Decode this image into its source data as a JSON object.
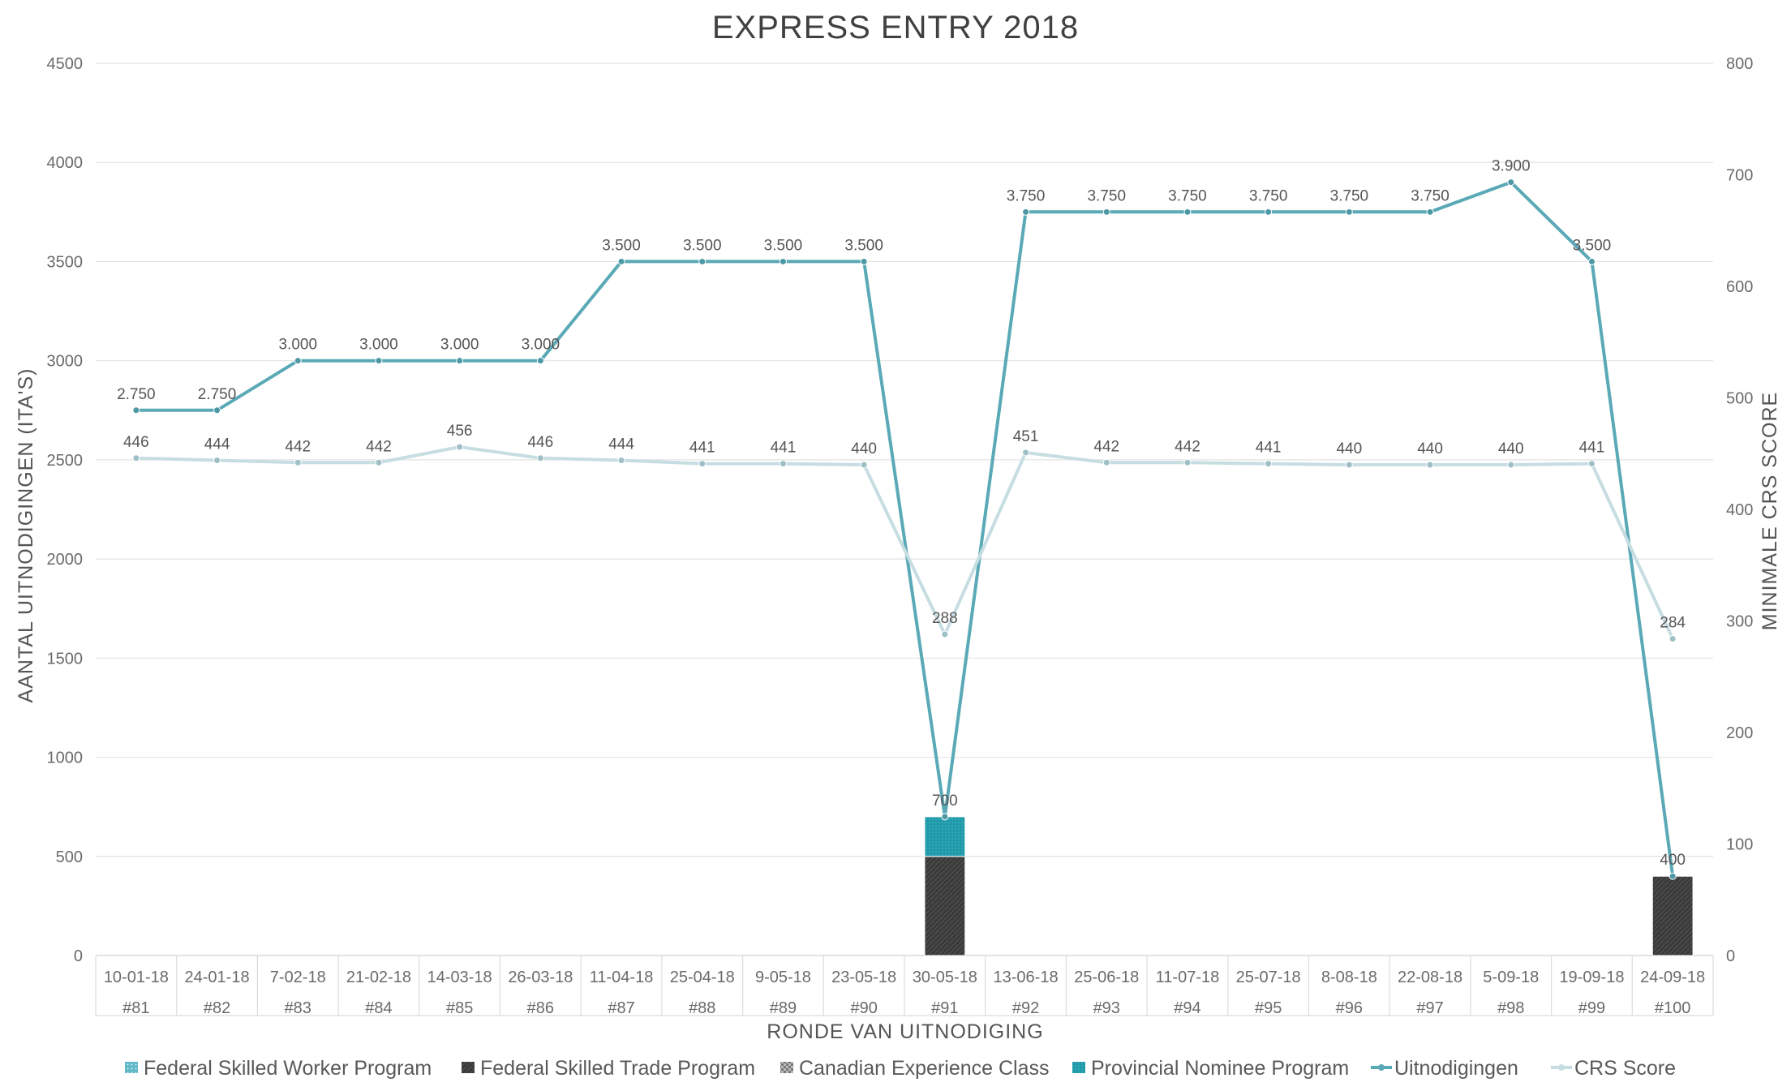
{
  "chart_data": {
    "type": "bar+line",
    "title": "EXPRESS ENTRY 2018",
    "xlabel": "RONDE VAN UITNODIGING",
    "ylabel_left": "AANTAL UITNODIGINGEN (ITA'S)",
    "ylabel_right": "MINIMALE CRS SCORE",
    "y_left_lim": [
      0,
      4500
    ],
    "y_left_ticks": [
      "0",
      "500",
      "1000",
      "1500",
      "2000",
      "2500",
      "3000",
      "3500",
      "4000",
      "4500"
    ],
    "y_right_lim": [
      0,
      800
    ],
    "y_right_ticks": [
      "0",
      "100",
      "200",
      "300",
      "400",
      "500",
      "600",
      "700",
      "800"
    ],
    "grid": true,
    "legend_position": "bottom",
    "dates": [
      "10-01-18",
      "24-01-18",
      "7-02-18",
      "21-02-18",
      "14-03-18",
      "26-03-18",
      "11-04-18",
      "25-04-18",
      "9-05-18",
      "23-05-18",
      "30-05-18",
      "13-06-18",
      "25-06-18",
      "11-07-18",
      "25-07-18",
      "8-08-18",
      "22-08-18",
      "5-09-18",
      "19-09-18",
      "24-09-18"
    ],
    "rounds": [
      "#81",
      "#82",
      "#83",
      "#84",
      "#85",
      "#86",
      "#87",
      "#88",
      "#89",
      "#90",
      "#91",
      "#92",
      "#93",
      "#94",
      "#95",
      "#96",
      "#97",
      "#98",
      "#99",
      "#100"
    ],
    "bar_series": [
      {
        "name": "Federal Skilled Worker Program",
        "color": "#5fb8c8",
        "pattern": "dots",
        "values": [
          0,
          0,
          0,
          0,
          0,
          0,
          0,
          0,
          0,
          0,
          0,
          0,
          0,
          0,
          0,
          0,
          0,
          0,
          0,
          0
        ]
      },
      {
        "name": "Federal Skilled Trade Program",
        "color": "#3a3a3a",
        "pattern": "dark",
        "values": [
          0,
          0,
          0,
          0,
          0,
          0,
          0,
          0,
          0,
          0,
          500,
          0,
          0,
          0,
          0,
          0,
          0,
          0,
          0,
          400
        ]
      },
      {
        "name": "Canadian Experience Class",
        "color": "#8c8c8c",
        "pattern": "checker",
        "values": [
          0,
          0,
          0,
          0,
          0,
          0,
          0,
          0,
          0,
          0,
          0,
          0,
          0,
          0,
          0,
          0,
          0,
          0,
          0,
          0
        ]
      },
      {
        "name": "Provincial Nominee Program",
        "color": "#1f9aaa",
        "pattern": "solid",
        "values": [
          0,
          0,
          0,
          0,
          0,
          0,
          0,
          0,
          0,
          0,
          200,
          0,
          0,
          0,
          0,
          0,
          0,
          0,
          0,
          0
        ]
      }
    ],
    "line_series": [
      {
        "name": "Uitnodigingen",
        "axis": "left",
        "color": "#5aa9b6",
        "values": [
          2750,
          2750,
          3000,
          3000,
          3000,
          3000,
          3500,
          3500,
          3500,
          3500,
          700,
          3750,
          3750,
          3750,
          3750,
          3750,
          3750,
          3900,
          3500,
          400
        ],
        "labels": [
          "2.750",
          "2.750",
          "3.000",
          "3.000",
          "3.000",
          "3.000",
          "3.500",
          "3.500",
          "3.500",
          "3.500",
          "700",
          "3.750",
          "3.750",
          "3.750",
          "3.750",
          "3.750",
          "3.750",
          "3.900",
          "3.500",
          "400"
        ]
      },
      {
        "name": "CRS Score",
        "axis": "right",
        "color": "#c6dde2",
        "values": [
          446,
          444,
          442,
          442,
          456,
          446,
          444,
          441,
          441,
          440,
          288,
          451,
          442,
          442,
          441,
          440,
          440,
          440,
          441,
          284
        ],
        "labels": [
          "446",
          "444",
          "442",
          "442",
          "456",
          "446",
          "444",
          "441",
          "441",
          "440",
          "288",
          "451",
          "442",
          "442",
          "441",
          "440",
          "440",
          "440",
          "441",
          "284"
        ]
      }
    ]
  }
}
